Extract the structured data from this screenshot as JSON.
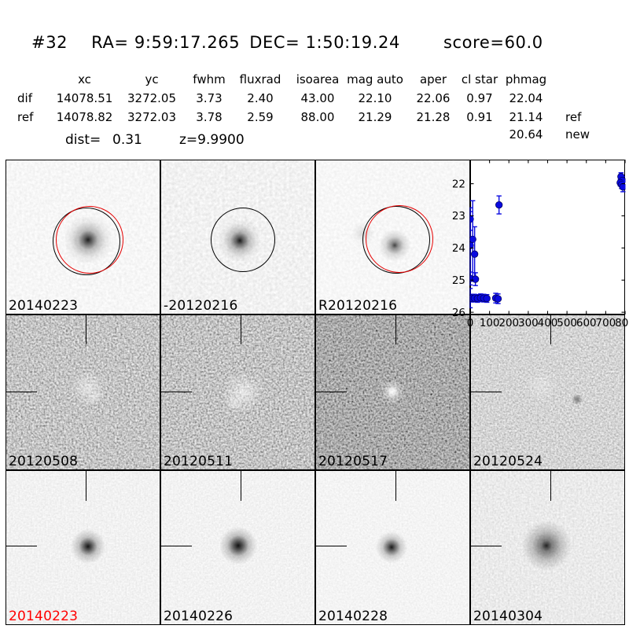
{
  "colors": {
    "accent_red": "#e60000",
    "label_red": "#ff0000",
    "marker_blue": "#0a0ae0"
  },
  "header": {
    "id": "#32",
    "ra": "RA= 9:59:17.265",
    "dec": "DEC= 1:50:19.24",
    "score": "score=60.0"
  },
  "table": {
    "headers": [
      "xc",
      "yc",
      "fwhm",
      "fluxrad",
      "isoarea",
      "mag auto",
      "aper",
      "cl star",
      "phmag"
    ],
    "rows": [
      {
        "label": "dif",
        "values": [
          "14078.51",
          "3272.05",
          "3.73",
          "2.40",
          "43.00",
          "22.10",
          "22.06",
          "0.97",
          "22.04"
        ],
        "suffix": ""
      },
      {
        "label": "ref",
        "values": [
          "14078.82",
          "3272.03",
          "3.78",
          "2.59",
          "88.00",
          "21.29",
          "21.28",
          "0.91",
          "21.14"
        ],
        "suffix": "ref"
      },
      {
        "label": "",
        "values": [
          "",
          "",
          "",
          "",
          "",
          "",
          "",
          "",
          "20.64"
        ],
        "suffix": "new"
      }
    ]
  },
  "stats": {
    "dist_label": "dist=",
    "dist_value": "0.31",
    "z_value": "z=9.9900"
  },
  "stamps": [
    {
      "label": "20140223",
      "label_style": "color:#000000"
    },
    {
      "label": "-20120216",
      "label_style": "color:#000000"
    },
    {
      "label": "R20120216",
      "label_style": "color:#000000"
    },
    {
      "label": "20120508",
      "label_style": "color:#000000"
    },
    {
      "label": "20120511",
      "label_style": "color:#000000"
    },
    {
      "label": "20120517",
      "label_style": "color:#000000"
    },
    {
      "label": "20120524",
      "label_style": "color:#000000"
    },
    {
      "label": "20140223",
      "label_style": "color:#ff0000"
    },
    {
      "label": "20140226",
      "label_style": "color:#000000"
    },
    {
      "label": "20140228",
      "label_style": "color:#000000"
    },
    {
      "label": "20140304",
      "label_style": "color:#000000"
    }
  ],
  "chart_data": {
    "type": "scatter",
    "title": "",
    "xlabel": "",
    "ylabel": "",
    "xlim": [
      0,
      800
    ],
    "ylim": [
      21.25,
      26.07
    ],
    "y_axis_inverted_magnitudes": true,
    "x_ticks": [
      0,
      100,
      200,
      300,
      400,
      500,
      600,
      700,
      800
    ],
    "y_ticks": [
      22,
      23,
      24,
      25,
      26
    ],
    "grid": false,
    "legend": "none",
    "marker_color": "#0a0ae0",
    "points": [
      {
        "x": 0,
        "y": 23.1,
        "err": 0.35
      },
      {
        "x": 0,
        "y": 23.92,
        "err": 1.05
      },
      {
        "x": 13,
        "y": 23.73,
        "err": 1.2
      },
      {
        "x": 23,
        "y": 24.19,
        "err": 0.85
      },
      {
        "x": 0,
        "y": 24.95,
        "err": 0.2
      },
      {
        "x": 27,
        "y": 24.97,
        "err": 0.2
      },
      {
        "x": 0,
        "y": 25.56,
        "err": 0.3
      },
      {
        "x": 6,
        "y": 25.56,
        "err": 0.12
      },
      {
        "x": 22,
        "y": 25.56,
        "err": 0.12
      },
      {
        "x": 38,
        "y": 25.57,
        "err": 0.12
      },
      {
        "x": 54,
        "y": 25.55,
        "err": 0.12
      },
      {
        "x": 70,
        "y": 25.56,
        "err": 0.12
      },
      {
        "x": 86,
        "y": 25.57,
        "err": 0.12
      },
      {
        "x": 132,
        "y": 25.56,
        "err": 0.15
      },
      {
        "x": 144,
        "y": 25.58,
        "err": 0.15
      },
      {
        "x": 149,
        "y": 22.66,
        "err": 0.28
      },
      {
        "x": 779,
        "y": 21.78,
        "err": 0.12
      },
      {
        "x": 786,
        "y": 21.9,
        "err": 0.12
      },
      {
        "x": 775,
        "y": 21.97,
        "err": 0.1
      },
      {
        "x": 782,
        "y": 22.03,
        "err": 0.12
      },
      {
        "x": 789,
        "y": 22.1,
        "err": 0.15
      }
    ]
  }
}
